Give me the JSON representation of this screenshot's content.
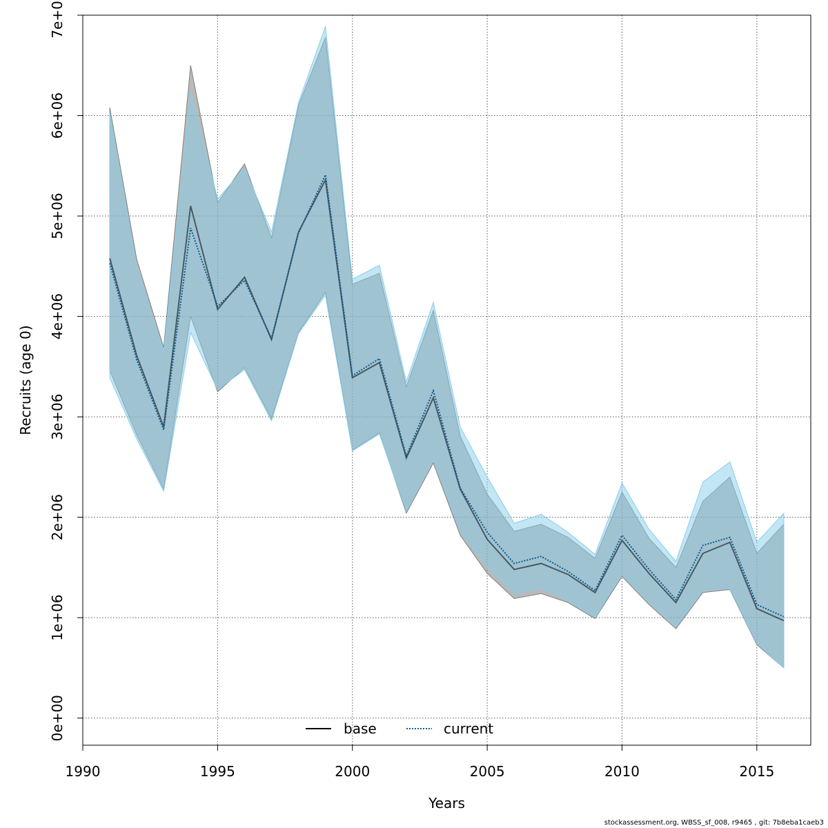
{
  "chart_data": {
    "type": "line",
    "xlabel": "Years",
    "ylabel": "Recruits (age 0)",
    "xlim": [
      1990,
      2017
    ],
    "ylim": [
      -270000,
      7000000
    ],
    "x_ticks": [
      1990,
      1995,
      2000,
      2005,
      2010,
      2015
    ],
    "x_tick_labels": [
      "1990",
      "1995",
      "2000",
      "2005",
      "2010",
      "2015"
    ],
    "y_ticks": [
      0,
      1000000,
      2000000,
      3000000,
      4000000,
      5000000,
      6000000,
      7000000
    ],
    "y_tick_labels": [
      "0e+00",
      "1e+06",
      "2e+06",
      "3e+06",
      "4e+06",
      "5e+06",
      "6e+06",
      "7e+06"
    ],
    "grid": true,
    "legend_position": "bottom-center",
    "x": [
      1991,
      1992,
      1993,
      1994,
      1995,
      1996,
      1997,
      1998,
      1999,
      2000,
      2001,
      2002,
      2003,
      2004,
      2005,
      2006,
      2007,
      2008,
      2009,
      2010,
      2011,
      2012,
      2013,
      2014,
      2015,
      2016
    ],
    "series": [
      {
        "name": "base",
        "line_style": "solid",
        "color": "#000000",
        "band_color": "#808080",
        "values": [
          4580000,
          3610000,
          2900000,
          5100000,
          4070000,
          4390000,
          3770000,
          4840000,
          5360000,
          3390000,
          3540000,
          2590000,
          3190000,
          2280000,
          1780000,
          1480000,
          1540000,
          1430000,
          1250000,
          1770000,
          1440000,
          1150000,
          1640000,
          1750000,
          1090000,
          970000
        ],
        "lower": [
          3460000,
          2820000,
          2280000,
          4000000,
          3250000,
          3490000,
          2980000,
          3840000,
          4240000,
          2670000,
          2840000,
          2040000,
          2540000,
          1820000,
          1440000,
          1190000,
          1240000,
          1150000,
          990000,
          1410000,
          1130000,
          890000,
          1250000,
          1280000,
          730000,
          500000
        ],
        "upper": [
          6080000,
          4570000,
          3690000,
          6500000,
          5130000,
          5520000,
          4780000,
          6100000,
          6780000,
          4320000,
          4430000,
          3300000,
          4060000,
          2810000,
          2230000,
          1860000,
          1930000,
          1800000,
          1590000,
          2250000,
          1790000,
          1500000,
          2160000,
          2400000,
          1640000,
          1930000
        ]
      },
      {
        "name": "current",
        "line_style": "dotted",
        "color": "#0a5b8c",
        "band_color": "#87ceeb",
        "values": [
          4530000,
          3570000,
          2870000,
          4880000,
          4100000,
          4360000,
          3780000,
          4830000,
          5410000,
          3410000,
          3580000,
          2610000,
          3260000,
          2290000,
          1850000,
          1540000,
          1610000,
          1460000,
          1270000,
          1820000,
          1480000,
          1180000,
          1720000,
          1800000,
          1130000,
          1010000
        ],
        "lower": [
          3390000,
          2780000,
          2260000,
          3840000,
          3270000,
          3470000,
          2960000,
          3830000,
          4210000,
          2660000,
          2830000,
          2060000,
          2580000,
          1850000,
          1500000,
          1240000,
          1290000,
          1170000,
          1000000,
          1430000,
          1150000,
          910000,
          1270000,
          1290000,
          740000,
          500000
        ],
        "upper": [
          6030000,
          4500000,
          3650000,
          6230000,
          5170000,
          5480000,
          4840000,
          6130000,
          6890000,
          4370000,
          4510000,
          3350000,
          4140000,
          2900000,
          2400000,
          1940000,
          2030000,
          1850000,
          1630000,
          2340000,
          1880000,
          1560000,
          2350000,
          2550000,
          1750000,
          2040000
        ]
      }
    ]
  },
  "footer": "stockassessment.org, WBSS_sf_008, r9465 , git: 7b8eba1caeb3"
}
